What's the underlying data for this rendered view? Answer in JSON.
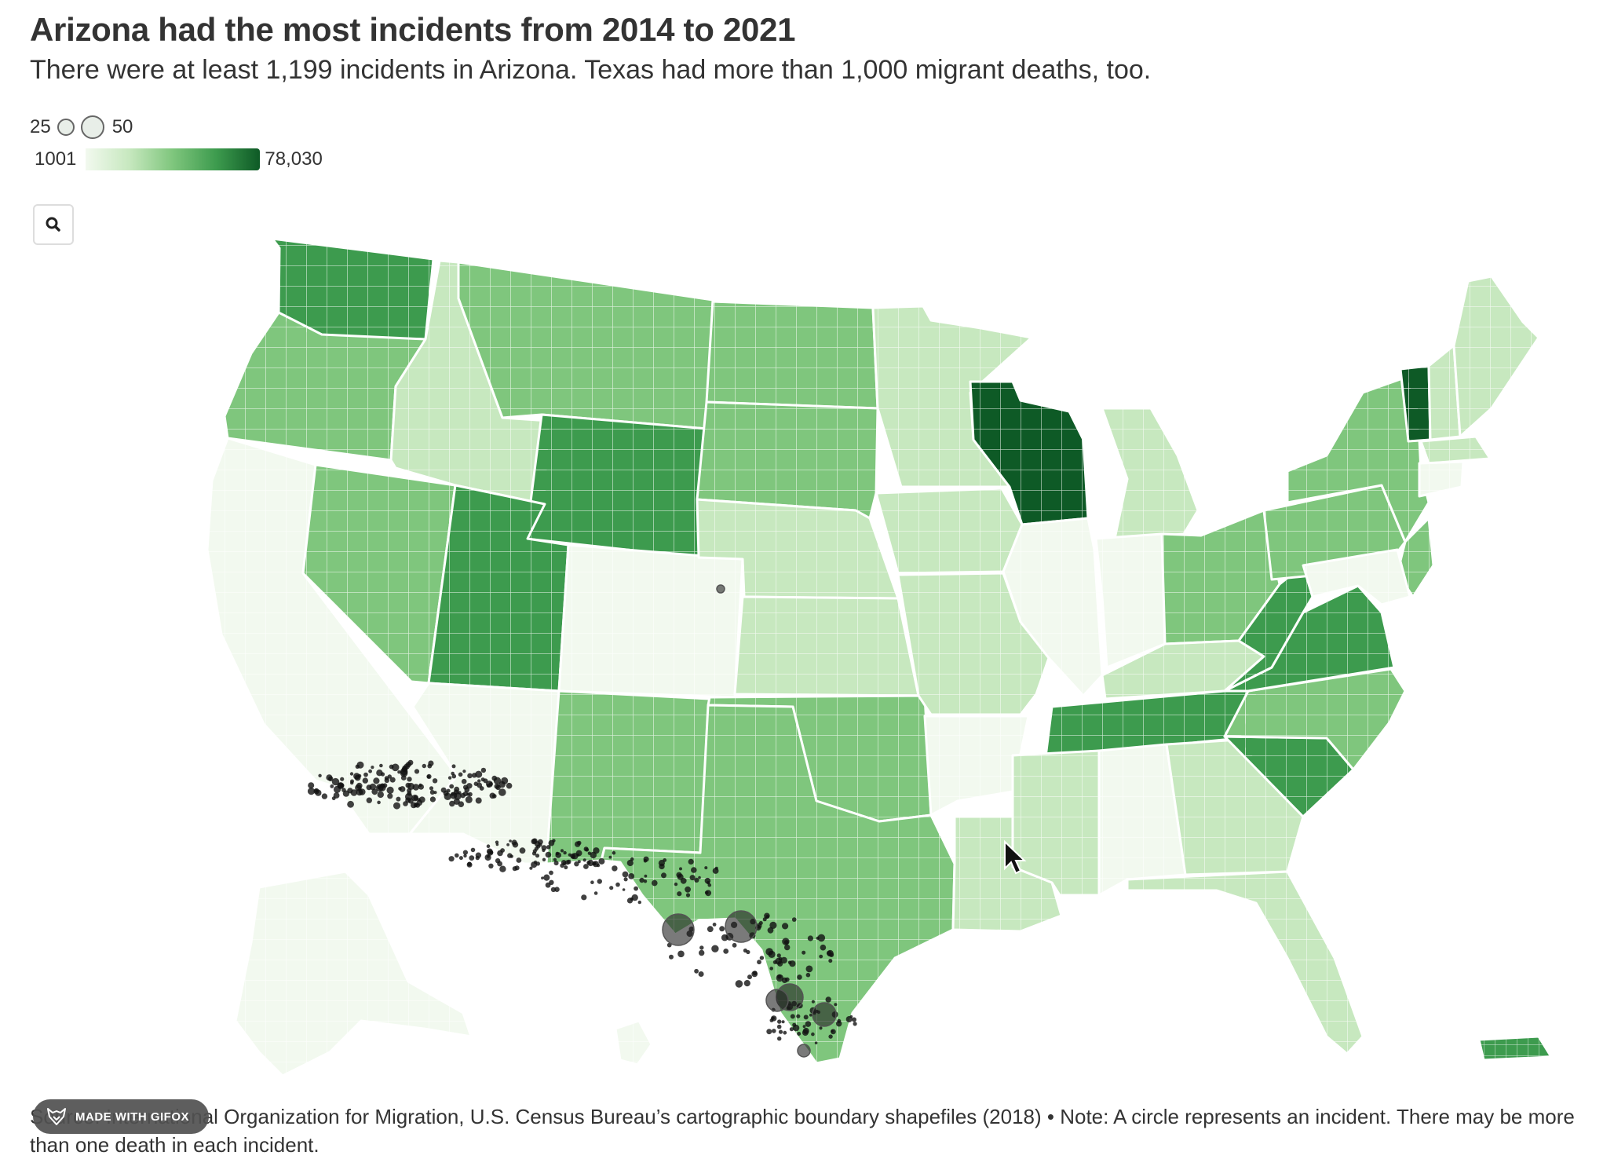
{
  "title": "Arizona had the most incidents from 2014 to 2021",
  "subtitle": "There were at least 1,199 incidents in Arizona. Texas had more than 1,000 migrant deaths, too.",
  "legend": {
    "size_min": "25",
    "size_max": "50",
    "color_min": "1001",
    "color_max": "78,030",
    "color_ramp": [
      "#f2f9ef",
      "#c7e8bf",
      "#7fc67d",
      "#3d9b4e",
      "#0e5a26"
    ]
  },
  "footer": "Source: International Organization for Migration, U.S. Census Bureau’s cartographic boundary shapefiles (2018) • Note: A circle represents an incident. There may be more than one death in each incident.",
  "watermark": "MADE WITH GIFOX",
  "icons": {
    "zoom": "search-icon",
    "cursor": "mouse-pointer-icon",
    "watermark_logo": "fox-logo-icon"
  },
  "colors": {
    "border": "#ffffff",
    "incident_dot": "#111111",
    "text": "#333333"
  }
}
